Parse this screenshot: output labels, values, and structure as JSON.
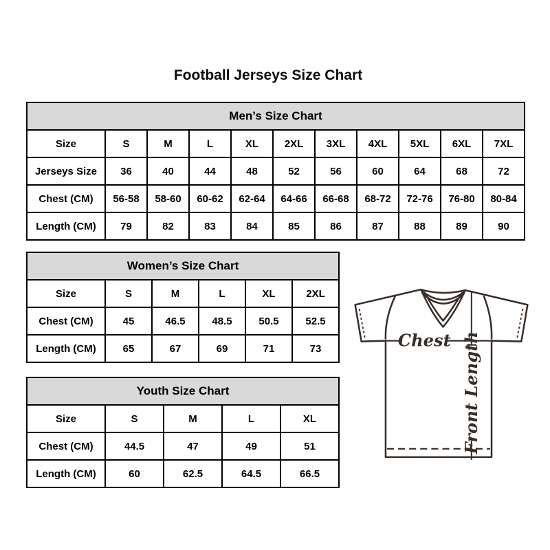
{
  "page": {
    "title": "Football Jerseys Size Chart"
  },
  "chart_data": [
    {
      "type": "table",
      "title": "Men’s Size Chart",
      "rows": [
        [
          "Size",
          "S",
          "M",
          "L",
          "XL",
          "2XL",
          "3XL",
          "4XL",
          "5XL",
          "6XL",
          "7XL"
        ],
        [
          "Jerseys Size",
          "36",
          "40",
          "44",
          "48",
          "52",
          "56",
          "60",
          "64",
          "68",
          "72"
        ],
        [
          "Chest (CM)",
          "56-58",
          "58-60",
          "60-62",
          "62-64",
          "64-66",
          "66-68",
          "68-72",
          "72-76",
          "76-80",
          "80-84"
        ],
        [
          "Length (CM)",
          "79",
          "82",
          "83",
          "84",
          "85",
          "86",
          "87",
          "88",
          "89",
          "90"
        ]
      ]
    },
    {
      "type": "table",
      "title": "Women’s Size Chart",
      "rows": [
        [
          "Size",
          "S",
          "M",
          "L",
          "XL",
          "2XL"
        ],
        [
          "Chest (CM)",
          "45",
          "46.5",
          "48.5",
          "50.5",
          "52.5"
        ],
        [
          "Length (CM)",
          "65",
          "67",
          "69",
          "71",
          "73"
        ]
      ]
    },
    {
      "type": "table",
      "title": "Youth Size Chart",
      "rows": [
        [
          "Size",
          "S",
          "M",
          "L",
          "XL"
        ],
        [
          "Chest (CM)",
          "44.5",
          "47",
          "49",
          "51"
        ],
        [
          "Length (CM)",
          "60",
          "62.5",
          "64.5",
          "66.5"
        ]
      ]
    }
  ],
  "diagram": {
    "chest_label": "Chest",
    "front_length_label": "Front Length"
  },
  "colors": {
    "table_header_bg": "#d9d9d9",
    "table_border": "#000000",
    "text": "#000000",
    "diagram_line": "#382d27",
    "background": "#ffffff"
  }
}
